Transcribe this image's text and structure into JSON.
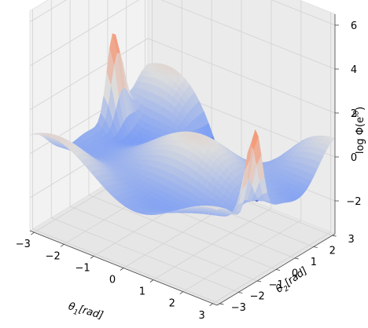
{
  "chart_data": {
    "type": "surface3d",
    "colormap": "coolwarm",
    "x_axis": {
      "label": "θ1[rad]",
      "label_main": "θ",
      "label_sub": "1",
      "label_unit": "[rad]",
      "ticks": [
        -3,
        -2,
        -1,
        0,
        1,
        2,
        3
      ],
      "range": [
        -3.1416,
        3.1416
      ]
    },
    "y_axis": {
      "label": "θ2[rad]",
      "label_main": "θ",
      "label_sub": "2",
      "label_unit": "[rad]",
      "ticks": [
        -3,
        -2,
        -1,
        0,
        1,
        2,
        3
      ],
      "range": [
        -3.1416,
        3.1416
      ]
    },
    "z_axis": {
      "label": "log Φ(e^iθ)",
      "label_main": "log Φ(e",
      "label_sup": "iθ",
      "label_close": ")",
      "ticks": [
        -2,
        0,
        2,
        4,
        6
      ],
      "range": [
        -3.5,
        6.5
      ]
    },
    "surface_features": {
      "peaks": [
        {
          "theta1": -3.14,
          "theta2": 1.3,
          "z": 4.9
        },
        {
          "theta1": 3.14,
          "theta2": -1.1,
          "z": 4.9
        }
      ],
      "minimum": {
        "theta1": 0.1,
        "theta2": 3.1,
        "z": -3.2
      },
      "z_range": [
        -3.2,
        4.9
      ]
    },
    "grid": true,
    "legend": "none"
  }
}
